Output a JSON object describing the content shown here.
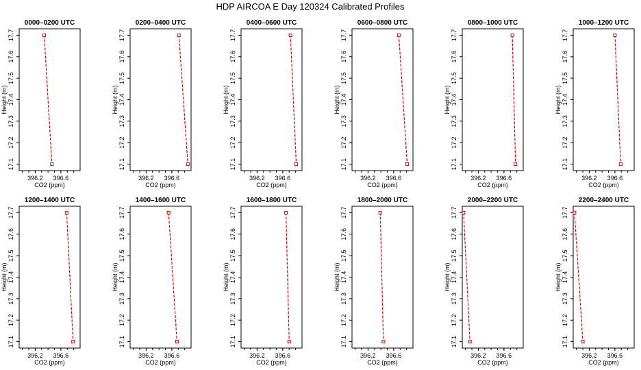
{
  "figure": {
    "title": "HDP AIRCOA E  Day 120324  Calibrated Profiles"
  },
  "colors": {
    "series": "#e00000",
    "axis": "#000000"
  },
  "chart_data": [
    {
      "type": "line",
      "title": "0000–0200 UTC",
      "xlabel": "CO2 (ppm)",
      "ylabel": "Height (m)",
      "xlim": [
        395.95,
        396.9
      ],
      "ylim": [
        17.07,
        17.73
      ],
      "xticks": [
        396.2,
        396.6
      ],
      "yticks": [
        17.1,
        17.2,
        17.3,
        17.4,
        17.5,
        17.6,
        17.7
      ],
      "x": [
        396.34,
        396.46
      ],
      "y": [
        17.7,
        17.1
      ]
    },
    {
      "type": "line",
      "title": "0200–0400 UTC",
      "xlabel": "CO2 (ppm)",
      "ylabel": "Height (m)",
      "xlim": [
        395.95,
        396.9
      ],
      "ylim": [
        17.07,
        17.73
      ],
      "xticks": [
        396.2,
        396.6
      ],
      "yticks": [
        17.1,
        17.2,
        17.3,
        17.4,
        17.5,
        17.6,
        17.7
      ],
      "x": [
        396.71,
        396.85
      ],
      "y": [
        17.7,
        17.1
      ]
    },
    {
      "type": "line",
      "title": "0400–0600 UTC",
      "xlabel": "CO2 (ppm)",
      "ylabel": "Height (m)",
      "xlim": [
        395.95,
        396.9
      ],
      "ylim": [
        17.07,
        17.73
      ],
      "xticks": [
        396.2,
        396.6
      ],
      "yticks": [
        17.1,
        17.2,
        17.3,
        17.4,
        17.5,
        17.6,
        17.7
      ],
      "x": [
        396.72,
        396.81
      ],
      "y": [
        17.7,
        17.1
      ]
    },
    {
      "type": "line",
      "title": "0600–0800 UTC",
      "xlabel": "CO2 (ppm)",
      "ylabel": "Height (m)",
      "xlim": [
        395.95,
        396.9
      ],
      "ylim": [
        17.07,
        17.73
      ],
      "xticks": [
        396.2,
        396.6
      ],
      "yticks": [
        17.1,
        17.2,
        17.3,
        17.4,
        17.5,
        17.6,
        17.7
      ],
      "x": [
        396.68,
        396.81
      ],
      "y": [
        17.7,
        17.1
      ]
    },
    {
      "type": "line",
      "title": "0800–1000 UTC",
      "xlabel": "CO2 (ppm)",
      "ylabel": "Height (m)",
      "xlim": [
        395.95,
        396.9
      ],
      "ylim": [
        17.07,
        17.73
      ],
      "xticks": [
        396.2,
        396.6
      ],
      "yticks": [
        17.1,
        17.2,
        17.3,
        17.4,
        17.5,
        17.6,
        17.7
      ],
      "x": [
        396.73,
        396.78
      ],
      "y": [
        17.7,
        17.1
      ]
    },
    {
      "type": "line",
      "title": "1000–1200 UTC",
      "xlabel": "CO2 (ppm)",
      "ylabel": "Height (m)",
      "xlim": [
        395.95,
        396.9
      ],
      "ylim": [
        17.07,
        17.73
      ],
      "xticks": [
        396.2,
        396.6
      ],
      "yticks": [
        17.1,
        17.2,
        17.3,
        17.4,
        17.5,
        17.6,
        17.7
      ],
      "x": [
        396.6,
        396.69
      ],
      "y": [
        17.7,
        17.1
      ]
    },
    {
      "type": "line",
      "title": "1200–1400 UTC",
      "xlabel": "CO2 (ppm)",
      "ylabel": "Height (m)",
      "xlim": [
        395.95,
        396.9
      ],
      "ylim": [
        17.07,
        17.73
      ],
      "xticks": [
        396.2,
        396.6
      ],
      "yticks": [
        17.1,
        17.2,
        17.3,
        17.4,
        17.5,
        17.6,
        17.7
      ],
      "x": [
        396.69,
        396.79
      ],
      "y": [
        17.7,
        17.1
      ]
    },
    {
      "type": "line",
      "title": "1400–1600 UTC",
      "xlabel": "CO2 (ppm)",
      "ylabel": "Height (m)",
      "xlim": [
        395.95,
        396.9
      ],
      "ylim": [
        17.07,
        17.73
      ],
      "xticks": [
        396.2,
        396.6
      ],
      "yticks": [
        17.1,
        17.2,
        17.3,
        17.4,
        17.5,
        17.6,
        17.7
      ],
      "x": [
        396.55,
        396.68
      ],
      "y": [
        17.7,
        17.1
      ]
    },
    {
      "type": "line",
      "title": "1600–1800 UTC",
      "xlabel": "CO2 (ppm)",
      "ylabel": "Height (m)",
      "xlim": [
        395.95,
        396.9
      ],
      "ylim": [
        17.07,
        17.73
      ],
      "xticks": [
        396.2,
        396.6
      ],
      "yticks": [
        17.1,
        17.2,
        17.3,
        17.4,
        17.5,
        17.6,
        17.7
      ],
      "x": [
        396.65,
        396.7
      ],
      "y": [
        17.7,
        17.1
      ]
    },
    {
      "type": "line",
      "title": "1800–2000 UTC",
      "xlabel": "CO2 (ppm)",
      "ylabel": "Height (m)",
      "xlim": [
        395.95,
        396.9
      ],
      "ylim": [
        17.07,
        17.73
      ],
      "xticks": [
        396.2,
        396.6
      ],
      "yticks": [
        17.1,
        17.2,
        17.3,
        17.4,
        17.5,
        17.6,
        17.7
      ],
      "x": [
        396.39,
        396.44
      ],
      "y": [
        17.7,
        17.1
      ]
    },
    {
      "type": "line",
      "title": "2000–2200 UTC",
      "xlabel": "CO2 (ppm)",
      "ylabel": "Height (m)",
      "xlim": [
        395.95,
        396.9
      ],
      "ylim": [
        17.07,
        17.73
      ],
      "xticks": [
        396.2,
        396.6
      ],
      "yticks": [
        17.1,
        17.2,
        17.3,
        17.4,
        17.5,
        17.6,
        17.7
      ],
      "x": [
        395.97,
        396.07
      ],
      "y": [
        17.7,
        17.1
      ]
    },
    {
      "type": "line",
      "title": "2200–2400 UTC",
      "xlabel": "CO2 (ppm)",
      "ylabel": "Height (m)",
      "xlim": [
        395.95,
        396.9
      ],
      "ylim": [
        17.07,
        17.73
      ],
      "xticks": [
        396.2,
        396.6
      ],
      "yticks": [
        17.1,
        17.2,
        17.3,
        17.4,
        17.5,
        17.6,
        17.7
      ],
      "x": [
        395.97,
        396.1
      ],
      "y": [
        17.7,
        17.1
      ]
    }
  ]
}
